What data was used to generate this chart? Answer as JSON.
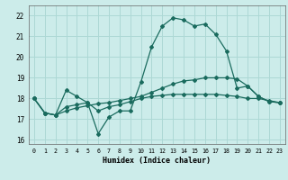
{
  "xlabel": "Humidex (Indice chaleur)",
  "bg_color": "#ccecea",
  "grid_color": "#add8d5",
  "line_color": "#1a6b5e",
  "xlim": [
    -0.5,
    23.5
  ],
  "ylim": [
    15.8,
    22.5
  ],
  "yticks": [
    16,
    17,
    18,
    19,
    20,
    21,
    22
  ],
  "xticks": [
    0,
    1,
    2,
    3,
    4,
    5,
    6,
    7,
    8,
    9,
    10,
    11,
    12,
    13,
    14,
    15,
    16,
    17,
    18,
    19,
    20,
    21,
    22,
    23
  ],
  "series1": [
    18.0,
    17.3,
    17.2,
    18.4,
    18.1,
    17.8,
    16.3,
    17.1,
    17.4,
    17.4,
    18.8,
    20.5,
    21.5,
    21.9,
    21.8,
    21.5,
    21.6,
    21.1,
    20.3,
    18.5,
    18.6,
    18.1,
    17.85,
    17.8
  ],
  "series2": [
    18.0,
    17.3,
    17.2,
    17.6,
    17.7,
    17.8,
    17.4,
    17.6,
    17.7,
    17.85,
    18.0,
    18.1,
    18.15,
    18.2,
    18.2,
    18.2,
    18.2,
    18.2,
    18.15,
    18.1,
    18.0,
    18.0,
    17.9,
    17.8
  ],
  "series3": [
    18.0,
    17.3,
    17.2,
    17.4,
    17.55,
    17.65,
    17.75,
    17.8,
    17.9,
    18.0,
    18.1,
    18.3,
    18.5,
    18.7,
    18.85,
    18.9,
    19.0,
    19.0,
    19.0,
    18.95,
    18.6,
    18.1,
    17.85,
    17.8
  ]
}
